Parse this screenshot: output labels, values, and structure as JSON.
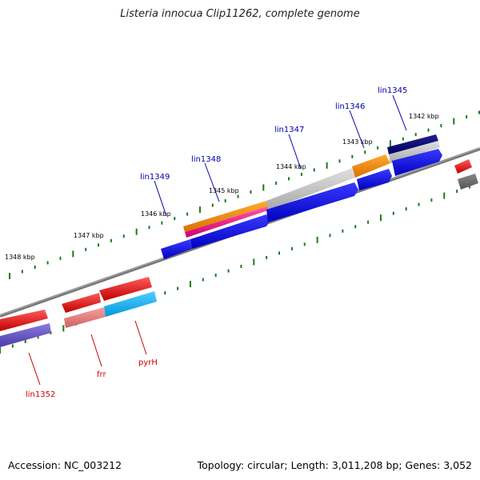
{
  "title": "Listeria innocua Clip11262, complete genome",
  "footer": {
    "accession": "Accession: NC_003212",
    "summary": "Topology: circular; Length: 3,011,208 bp; Genes: 3,052"
  },
  "scale_ticks": [
    "1342 kbp",
    "1343 kbp",
    "1344 kbp",
    "1345 kbp",
    "1346 kbp",
    "1347 kbp",
    "1348 kbp"
  ],
  "gene_labels_top": [
    "lin1345",
    "lin1346",
    "lin1347",
    "lin1348",
    "lin1349"
  ],
  "gene_labels_bottom": [
    "lin1352",
    "frr",
    "pyrH"
  ],
  "colors": {
    "label_top": "#0000aa",
    "label_bottom": "#cc0000",
    "backbone": "#777777",
    "tick": "#1a7a1a"
  }
}
